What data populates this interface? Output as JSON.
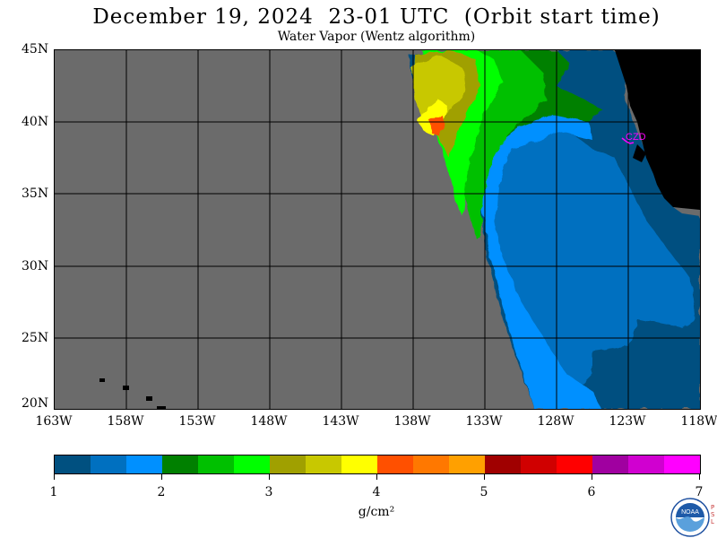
{
  "header": {
    "title": "December 19, 2024  23-01 UTC  (Orbit start time)",
    "subtitle": "Water Vapor (Wentz algorithm)"
  },
  "map": {
    "latitudes": [
      "45N",
      "40N",
      "35N",
      "30N",
      "25N",
      "20N"
    ],
    "longitudes": [
      "163W",
      "158W",
      "153W",
      "148W",
      "143W",
      "138W",
      "133W",
      "128W",
      "123W",
      "118W"
    ],
    "station_label": "CZD",
    "colors": {
      "no_data": "#6b6b6b",
      "land": "#000000",
      "grid": "#000000",
      "station": "#ff00ff"
    }
  },
  "colorbar": {
    "colors": [
      "#005080",
      "#0070c0",
      "#0090ff",
      "#008000",
      "#00c000",
      "#00ff00",
      "#a0a000",
      "#c8c800",
      "#ffff00",
      "#ff5000",
      "#ff7800",
      "#ffa000",
      "#a00000",
      "#d00000",
      "#ff0000",
      "#a000a0",
      "#d000d0",
      "#ff00ff"
    ],
    "tick_labels": [
      "1",
      "2",
      "3",
      "4",
      "5",
      "6",
      "7"
    ],
    "units": "g/cm²"
  },
  "logo": {
    "text": "NOAA",
    "psl_text": "PSL"
  }
}
